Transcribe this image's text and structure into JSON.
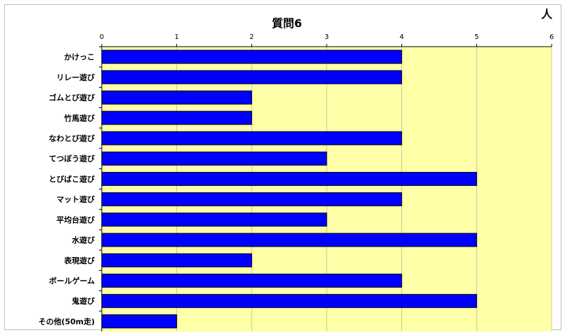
{
  "chart_data": {
    "type": "bar",
    "orientation": "horizontal",
    "title": "質問6",
    "unit_label": "人",
    "xlabel": "",
    "ylabel": "",
    "xlim": [
      0,
      6
    ],
    "x_ticks": [
      0,
      1,
      2,
      3,
      4,
      5,
      6
    ],
    "axis_position": "top",
    "grid": true,
    "categories": [
      "かけっこ",
      "リレー遊び",
      "ゴムとび遊び",
      "竹馬遊び",
      "なわとび遊び",
      "てつぼう遊び",
      "とびばこ遊び",
      "マット遊び",
      "平均台遊び",
      "水遊び",
      "表現遊び",
      "ボールゲーム",
      "鬼遊び",
      "その他(50m走)"
    ],
    "values": [
      4,
      4,
      2,
      2,
      4,
      3,
      5,
      4,
      3,
      5,
      2,
      4,
      5,
      1
    ],
    "colors": {
      "bar_fill": "#0000ff",
      "bar_stroke": "#000000",
      "plot_background": "#ffffa8",
      "gridline": "#c8c8a0"
    }
  }
}
